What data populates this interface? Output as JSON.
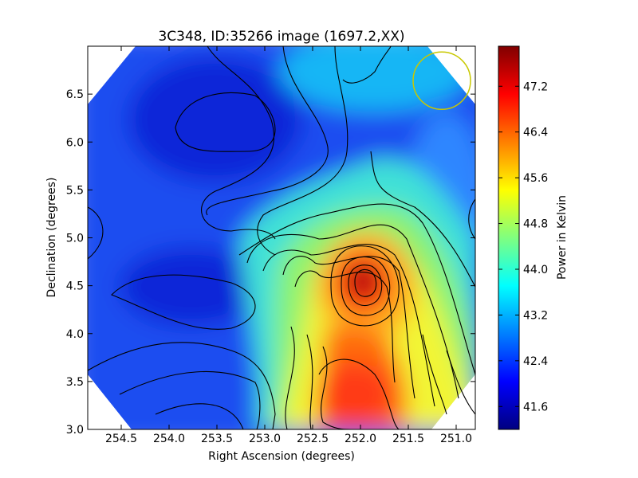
{
  "chart_data": {
    "type": "heatmap",
    "title": "3C348, ID:35266 image (1697.2,XX)",
    "xlabel": "Right Ascension (degrees)",
    "ylabel": "Declination (degrees)",
    "colorbar_label": "Power in Kelvin",
    "colormap": "jet",
    "xlim": [
      254.85,
      250.8
    ],
    "ylim": [
      3.0,
      7.0
    ],
    "x_ticks": [
      "254.5",
      "254.0",
      "253.5",
      "253.0",
      "252.5",
      "252.0",
      "251.5",
      "251.0"
    ],
    "y_ticks": [
      "3.0",
      "3.5",
      "4.0",
      "4.5",
      "5.0",
      "5.5",
      "6.0",
      "6.5"
    ],
    "colorbar_range": [
      41.2,
      47.9
    ],
    "colorbar_ticks": [
      "41.6",
      "42.4",
      "43.2",
      "44.0",
      "44.8",
      "45.6",
      "46.4",
      "47.2"
    ],
    "peak": {
      "ra": 251.92,
      "dec": 4.55,
      "value": 47.8
    },
    "secondary_peak": {
      "ra": 251.95,
      "dec": 3.4,
      "value": 46.6
    },
    "minimum": {
      "ra": 253.4,
      "dec": 6.2,
      "value": 41.3
    },
    "beam_marker": {
      "ra": 251.15,
      "dec": 6.64,
      "radius_deg": 0.3,
      "color": "#c8c800"
    },
    "contours": true,
    "grid": false
  }
}
